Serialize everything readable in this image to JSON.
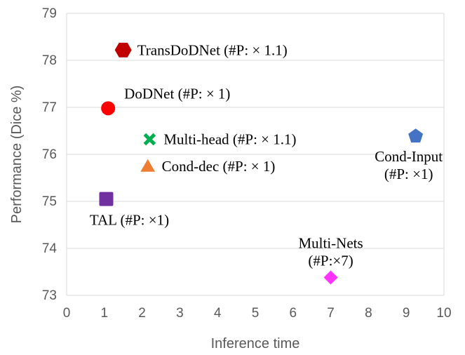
{
  "chart_data": {
    "type": "scatter",
    "title": "",
    "xlabel": "Inference time",
    "ylabel": "Performance (Dice %)",
    "xlim": [
      0,
      10
    ],
    "ylim": [
      73,
      79
    ],
    "xticks": [
      0,
      1,
      2,
      3,
      4,
      5,
      6,
      7,
      8,
      9,
      10
    ],
    "yticks": [
      73,
      74,
      75,
      76,
      77,
      78,
      79
    ],
    "grid": "horizontal",
    "points": [
      {
        "name": "TransDoDNet",
        "label": [
          "TransDoDNet (#P: × 1.1)"
        ],
        "x": 1.5,
        "y": 78.22,
        "marker": "hexagon",
        "color": "#c00000",
        "label_position": "right"
      },
      {
        "name": "DoDNet",
        "label": [
          "DoDNet (#P: × 1)"
        ],
        "x": 1.1,
        "y": 76.98,
        "marker": "circle",
        "color": "#ff0000",
        "label_position": "top-right"
      },
      {
        "name": "Multi-head",
        "label": [
          "Multi-head (#P: × 1.1)"
        ],
        "x": 2.2,
        "y": 76.32,
        "marker": "x",
        "color": "#00b050",
        "label_position": "right"
      },
      {
        "name": "Cond-dec",
        "label": [
          "Cond-dec (#P: × 1)"
        ],
        "x": 2.15,
        "y": 75.75,
        "marker": "triangle",
        "color": "#ed7d31",
        "label_position": "right"
      },
      {
        "name": "Cond-Input",
        "label": [
          "Cond-Input",
          "(#P: ×1)"
        ],
        "x": 9.25,
        "y": 76.4,
        "marker": "pentagon",
        "color": "#4472c4",
        "label_position": "below"
      },
      {
        "name": "TAL",
        "label": [
          "TAL (#P: ×1)"
        ],
        "x": 1.05,
        "y": 75.05,
        "marker": "square",
        "color": "#7030a0",
        "label_position": "below"
      },
      {
        "name": "Multi-Nets",
        "label": [
          "Multi-Nets",
          "(#P:×7)"
        ],
        "x": 7.0,
        "y": 73.38,
        "marker": "diamond",
        "color": "#ff33ff",
        "label_position": "above"
      }
    ]
  }
}
